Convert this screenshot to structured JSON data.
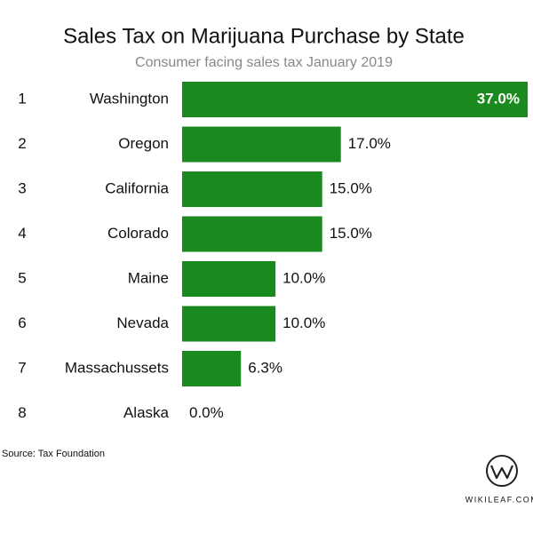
{
  "chart_data": {
    "type": "bar",
    "orientation": "horizontal",
    "title": "Sales Tax on Marijuana Purchase by State",
    "subtitle": "Consumer facing sales tax January 2019",
    "ranks": [
      1,
      2,
      3,
      4,
      5,
      6,
      7,
      8
    ],
    "categories": [
      "Washington",
      "Oregon",
      "California",
      "Colorado",
      "Maine",
      "Nevada",
      "Massachussets",
      "Alaska"
    ],
    "values": [
      37.0,
      17.0,
      15.0,
      15.0,
      10.0,
      10.0,
      6.3,
      0.0
    ],
    "value_labels": [
      "37.0%",
      "17.0%",
      "15.0%",
      "15.0%",
      "10.0%",
      "10.0%",
      "6.3%",
      "0.0%"
    ],
    "color": "#1a8a1e",
    "source": "Source: Tax Foundation",
    "logo": "WIKILEAF.COM"
  }
}
